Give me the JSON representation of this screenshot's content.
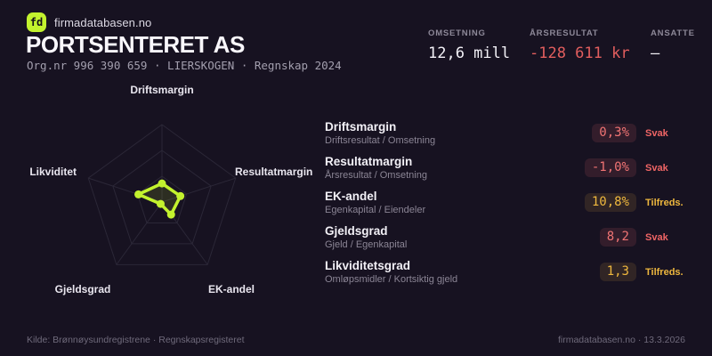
{
  "brand": {
    "logo_text": "fd",
    "site_name": "firmadatabasen.no"
  },
  "header": {
    "company_name": "PORTSENTERET AS",
    "meta_line": "Org.nr 996 390 659 · LIERSKOGEN · Regnskap 2024"
  },
  "stats": [
    {
      "label": "OMSETNING",
      "value": "12,6 mill",
      "tone": "normal"
    },
    {
      "label": "ÅRSRESULTAT",
      "value": "-128 611 kr",
      "tone": "bad"
    },
    {
      "label": "ANSATTE",
      "value": "–",
      "tone": "normal"
    }
  ],
  "chart_data": {
    "type": "radar",
    "axes": [
      "Driftsmargin",
      "Resultatmargin",
      "EK-andel",
      "Gjeldsgrad",
      "Likviditet"
    ],
    "values": [
      0.24,
      0.25,
      0.2,
      0.03,
      0.32
    ],
    "max": 1,
    "grid_levels": 3,
    "line_color": "#c3f22e",
    "fill_color": "rgba(195,242,46,0.13)",
    "grid_color": "#2b2737",
    "legend": "none",
    "title": ""
  },
  "metrics": [
    {
      "name": "Driftsmargin",
      "formula": "Driftsresultat / Omsetning",
      "value": "0,3%",
      "status": "Svak",
      "tone": "bad"
    },
    {
      "name": "Resultatmargin",
      "formula": "Årsresultat / Omsetning",
      "value": "-1,0%",
      "status": "Svak",
      "tone": "bad"
    },
    {
      "name": "EK-andel",
      "formula": "Egenkapital / Eiendeler",
      "value": "10,8%",
      "status": "Tilfreds.",
      "tone": "ok"
    },
    {
      "name": "Gjeldsgrad",
      "formula": "Gjeld / Egenkapital",
      "value": "8,2",
      "status": "Svak",
      "tone": "bad"
    },
    {
      "name": "Likviditetsgrad",
      "formula": "Omløpsmidler / Kortsiktig gjeld",
      "value": "1,3",
      "status": "Tilfreds.",
      "tone": "ok"
    }
  ],
  "footer": {
    "source": "Kilde: Brønnøysundregistrene · Regnskapsregisteret",
    "site_stamp": "firmadatabasen.no · 13.3.2026"
  },
  "colors": {
    "background": "#171221",
    "accent_green": "#c3f22e",
    "negative_red": "#e25e5e",
    "warn_amber": "#efb83e"
  }
}
